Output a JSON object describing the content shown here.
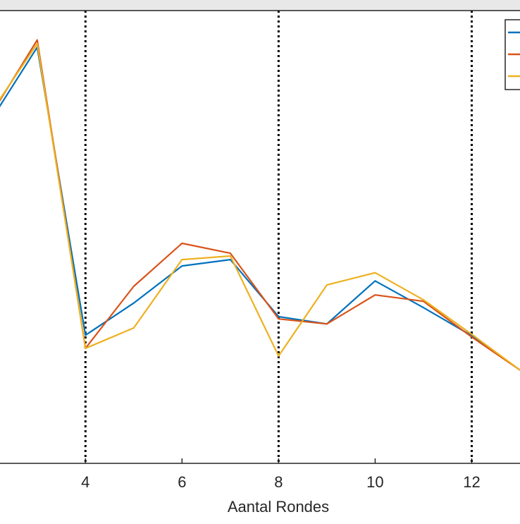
{
  "chart_data": {
    "type": "line",
    "title": "",
    "xlabel": "Aantal Rondes",
    "ylabel": "",
    "xlim": [
      2.23,
      13
    ],
    "ylim": [
      0,
      1
    ],
    "xticks": [
      4,
      6,
      8,
      10,
      12
    ],
    "vlines": [
      4,
      8,
      12
    ],
    "grid": false,
    "legend_placement": "top-right",
    "x": [
      2,
      3,
      4,
      5,
      6,
      7,
      8,
      9,
      10,
      11,
      12,
      13
    ],
    "series": [
      {
        "name": "",
        "color": "#0072bd",
        "values": [
          0.751,
          0.919,
          0.283,
          0.354,
          0.436,
          0.45,
          0.324,
          0.308,
          0.403,
          0.344,
          0.282,
          0.206
        ]
      },
      {
        "name": "",
        "color": "#d95319",
        "values": [
          0.762,
          0.935,
          0.254,
          0.391,
          0.486,
          0.464,
          0.319,
          0.308,
          0.372,
          0.358,
          0.279,
          0.206
        ]
      },
      {
        "name": "",
        "color": "#edb120",
        "values": [
          0.768,
          0.927,
          0.254,
          0.299,
          0.45,
          0.458,
          0.237,
          0.394,
          0.421,
          0.361,
          0.285,
          0.206
        ]
      }
    ]
  }
}
